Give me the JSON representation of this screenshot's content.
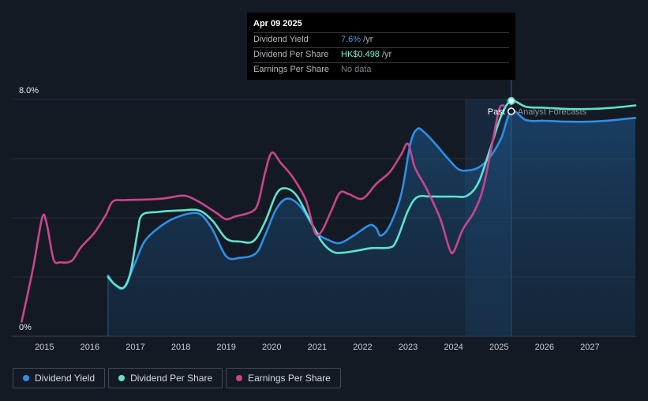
{
  "tooltip": {
    "date": "Apr 09 2025",
    "rows": [
      {
        "name": "Dividend Yield",
        "value": "7.6%",
        "unit": " /yr"
      },
      {
        "name": "Dividend Per Share",
        "value": "HK$0.498",
        "unit": " /yr"
      },
      {
        "name": "Earnings Per Share",
        "value": "No data"
      }
    ]
  },
  "legend": [
    {
      "label": "Dividend Yield",
      "color": "#2e8fe6"
    },
    {
      "label": "Dividend Per Share",
      "color": "#5fe3cf"
    },
    {
      "label": "Earnings Per Share",
      "color": "#c9458c"
    }
  ],
  "chart_data": {
    "type": "line",
    "title": "",
    "ylabel": "",
    "y_axis_labels": [
      "8.0%",
      "0%"
    ],
    "ylim": [
      0,
      8
    ],
    "xlim": [
      2014.3,
      2028.0
    ],
    "x_ticks": [
      "2015",
      "2016",
      "2017",
      "2018",
      "2019",
      "2020",
      "2021",
      "2022",
      "2023",
      "2024",
      "2025",
      "2026",
      "2027"
    ],
    "annotations": {
      "past": "Past",
      "forecast": "Analyst Forecasts"
    },
    "past_cutoff": 2025.27,
    "forecast_band_start": 2024.25,
    "series": [
      {
        "name": "Dividend Yield",
        "color": "#2e8fe6",
        "fill_area": true,
        "points": [
          [
            2016.4,
            2.05
          ],
          [
            2016.55,
            1.75
          ],
          [
            2016.75,
            1.65
          ],
          [
            2017.0,
            2.5
          ],
          [
            2017.2,
            3.2
          ],
          [
            2017.5,
            3.65
          ],
          [
            2017.8,
            3.95
          ],
          [
            2018.2,
            4.15
          ],
          [
            2018.45,
            4.1
          ],
          [
            2018.7,
            3.6
          ],
          [
            2019.0,
            2.7
          ],
          [
            2019.3,
            2.65
          ],
          [
            2019.65,
            2.8
          ],
          [
            2019.85,
            3.4
          ],
          [
            2020.1,
            4.3
          ],
          [
            2020.35,
            4.65
          ],
          [
            2020.65,
            4.35
          ],
          [
            2021.0,
            3.5
          ],
          [
            2021.25,
            3.25
          ],
          [
            2021.5,
            3.15
          ],
          [
            2021.8,
            3.4
          ],
          [
            2022.15,
            3.75
          ],
          [
            2022.3,
            3.65
          ],
          [
            2022.4,
            3.4
          ],
          [
            2022.6,
            3.75
          ],
          [
            2022.85,
            4.8
          ],
          [
            2023.05,
            6.5
          ],
          [
            2023.2,
            7.0
          ],
          [
            2023.35,
            6.9
          ],
          [
            2023.6,
            6.5
          ],
          [
            2023.85,
            6.05
          ],
          [
            2024.1,
            5.65
          ],
          [
            2024.3,
            5.6
          ],
          [
            2024.55,
            5.7
          ],
          [
            2024.8,
            6.05
          ],
          [
            2025.05,
            6.7
          ],
          [
            2025.27,
            7.6
          ],
          [
            2025.6,
            7.3
          ],
          [
            2026.0,
            7.28
          ],
          [
            2026.5,
            7.25
          ],
          [
            2027.0,
            7.25
          ],
          [
            2027.5,
            7.3
          ],
          [
            2028.0,
            7.38
          ]
        ]
      },
      {
        "name": "Dividend Per Share",
        "color": "#5fe3cf",
        "fill_area": false,
        "points": [
          [
            2016.4,
            2.0
          ],
          [
            2016.55,
            1.75
          ],
          [
            2016.75,
            1.65
          ],
          [
            2016.9,
            2.2
          ],
          [
            2017.05,
            3.55
          ],
          [
            2017.15,
            4.1
          ],
          [
            2017.5,
            4.2
          ],
          [
            2018.0,
            4.25
          ],
          [
            2018.4,
            4.25
          ],
          [
            2018.7,
            3.9
          ],
          [
            2019.0,
            3.3
          ],
          [
            2019.3,
            3.2
          ],
          [
            2019.6,
            3.22
          ],
          [
            2019.85,
            3.85
          ],
          [
            2020.1,
            4.8
          ],
          [
            2020.3,
            5.0
          ],
          [
            2020.55,
            4.75
          ],
          [
            2020.85,
            3.9
          ],
          [
            2021.1,
            3.2
          ],
          [
            2021.35,
            2.85
          ],
          [
            2021.6,
            2.83
          ],
          [
            2021.9,
            2.9
          ],
          [
            2022.2,
            2.98
          ],
          [
            2022.6,
            3.0
          ],
          [
            2022.75,
            3.25
          ],
          [
            2023.0,
            4.25
          ],
          [
            2023.2,
            4.7
          ],
          [
            2023.5,
            4.72
          ],
          [
            2024.0,
            4.72
          ],
          [
            2024.3,
            4.75
          ],
          [
            2024.55,
            5.2
          ],
          [
            2024.8,
            6.3
          ],
          [
            2025.05,
            7.45
          ],
          [
            2025.27,
            7.95
          ],
          [
            2025.6,
            7.75
          ],
          [
            2026.0,
            7.72
          ],
          [
            2026.5,
            7.68
          ],
          [
            2027.0,
            7.68
          ],
          [
            2027.5,
            7.72
          ],
          [
            2028.0,
            7.8
          ]
        ]
      },
      {
        "name": "Earnings Per Share",
        "color": "#c9458c",
        "fill_area": false,
        "points": [
          [
            2014.5,
            0.5
          ],
          [
            2014.75,
            2.3
          ],
          [
            2014.95,
            4.0
          ],
          [
            2015.05,
            3.8
          ],
          [
            2015.2,
            2.6
          ],
          [
            2015.35,
            2.5
          ],
          [
            2015.6,
            2.55
          ],
          [
            2015.8,
            3.0
          ],
          [
            2016.1,
            3.5
          ],
          [
            2016.35,
            4.1
          ],
          [
            2016.5,
            4.55
          ],
          [
            2016.75,
            4.6
          ],
          [
            2017.2,
            4.62
          ],
          [
            2017.6,
            4.65
          ],
          [
            2018.0,
            4.75
          ],
          [
            2018.2,
            4.7
          ],
          [
            2018.5,
            4.45
          ],
          [
            2018.8,
            4.15
          ],
          [
            2019.0,
            3.95
          ],
          [
            2019.2,
            4.05
          ],
          [
            2019.55,
            4.2
          ],
          [
            2019.7,
            4.5
          ],
          [
            2019.85,
            5.5
          ],
          [
            2020.0,
            6.2
          ],
          [
            2020.2,
            5.85
          ],
          [
            2020.45,
            5.4
          ],
          [
            2020.75,
            4.6
          ],
          [
            2020.95,
            3.5
          ],
          [
            2021.1,
            3.55
          ],
          [
            2021.3,
            4.2
          ],
          [
            2021.5,
            4.85
          ],
          [
            2021.7,
            4.8
          ],
          [
            2022.0,
            4.65
          ],
          [
            2022.3,
            5.15
          ],
          [
            2022.6,
            5.55
          ],
          [
            2022.85,
            6.15
          ],
          [
            2023.0,
            6.5
          ],
          [
            2023.15,
            5.7
          ],
          [
            2023.4,
            5.0
          ],
          [
            2023.7,
            4.0
          ],
          [
            2023.9,
            3.0
          ],
          [
            2024.0,
            2.85
          ],
          [
            2024.2,
            3.6
          ],
          [
            2024.45,
            4.2
          ],
          [
            2024.65,
            5.0
          ],
          [
            2024.85,
            6.5
          ],
          [
            2025.0,
            7.65
          ],
          [
            2025.1,
            7.8
          ]
        ]
      }
    ]
  }
}
